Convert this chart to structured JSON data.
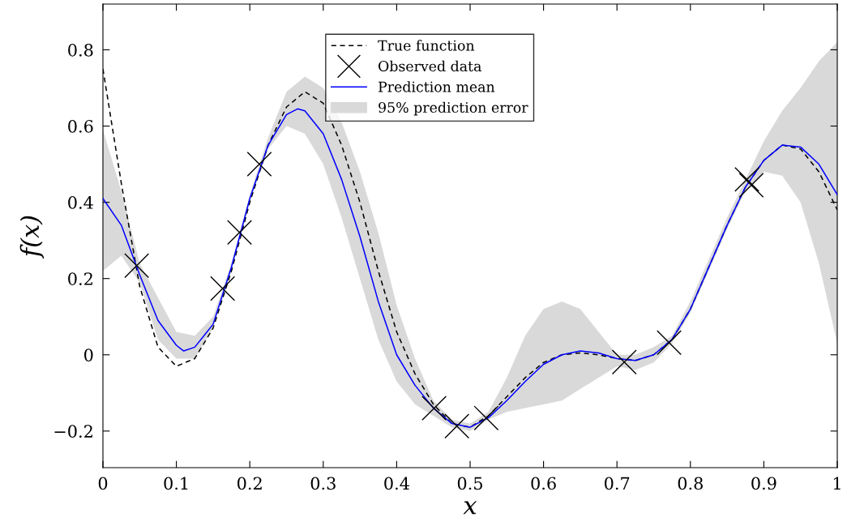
{
  "chart_data": {
    "type": "line",
    "xlabel": "x",
    "ylabel": "f(x)",
    "xlim": [
      0,
      1
    ],
    "ylim": [
      -0.296,
      0.92
    ],
    "xticks": [
      0,
      0.1,
      0.2,
      0.3,
      0.4,
      0.5,
      0.6,
      0.7,
      0.8,
      0.9,
      1
    ],
    "yticks": [
      {
        "value": -0.2,
        "label": "−0.2"
      },
      0,
      0.2,
      0.4,
      0.6,
      0.8
    ],
    "grid": false,
    "legend": "top",
    "series": [
      {
        "name": "95% prediction error",
        "type": "area",
        "color": "#d9d9d9",
        "values": [
          null,
          null,
          null,
          null,
          null,
          null,
          null,
          null,
          null,
          null,
          null,
          null,
          null,
          null,
          null,
          null,
          null,
          null,
          null,
          null,
          null,
          null,
          null,
          null,
          null,
          null,
          null,
          null,
          null,
          null,
          null,
          null,
          null,
          null,
          null,
          null,
          null,
          null,
          null,
          null,
          null
        ],
        "x": [
          0,
          0.025,
          0.05,
          0.075,
          0.1,
          0.125,
          0.15,
          0.175,
          0.2,
          0.225,
          0.25,
          0.275,
          0.3,
          0.325,
          0.35,
          0.375,
          0.4,
          0.425,
          0.45,
          0.475,
          0.5,
          0.525,
          0.55,
          0.575,
          0.6,
          0.625,
          0.65,
          0.675,
          0.7,
          0.725,
          0.75,
          0.775,
          0.8,
          0.825,
          0.85,
          0.875,
          0.9,
          0.925,
          0.95,
          0.975,
          1
        ],
        "lower": [
          0.22,
          0.26,
          0.19,
          0.04,
          -0.01,
          -0.01,
          0.07,
          0.22,
          0.4,
          0.54,
          0.6,
          0.58,
          0.5,
          0.36,
          0.2,
          0.04,
          -0.07,
          -0.13,
          -0.16,
          -0.19,
          -0.2,
          -0.17,
          -0.15,
          -0.14,
          -0.13,
          -0.12,
          -0.09,
          -0.06,
          -0.03,
          -0.04,
          -0.02,
          0.03,
          0.11,
          0.22,
          0.33,
          0.43,
          0.48,
          0.47,
          0.4,
          0.24,
          0.03
        ],
        "upper": [
          0.59,
          0.43,
          0.24,
          0.15,
          0.06,
          0.05,
          0.1,
          0.24,
          0.42,
          0.57,
          0.69,
          0.73,
          0.7,
          0.61,
          0.48,
          0.32,
          0.13,
          -0.01,
          -0.12,
          -0.17,
          -0.18,
          -0.15,
          -0.06,
          0.05,
          0.12,
          0.14,
          0.12,
          0.06,
          0.0,
          0.0,
          0.02,
          0.05,
          0.14,
          0.25,
          0.36,
          0.46,
          0.56,
          0.64,
          0.7,
          0.77,
          0.82
        ]
      },
      {
        "name": "True function",
        "color": "#000000",
        "line_style": "dashed",
        "x": [
          0,
          0.025,
          0.05,
          0.075,
          0.1,
          0.125,
          0.15,
          0.175,
          0.2,
          0.225,
          0.25,
          0.275,
          0.3,
          0.325,
          0.35,
          0.375,
          0.4,
          0.425,
          0.45,
          0.475,
          0.5,
          0.525,
          0.55,
          0.575,
          0.6,
          0.625,
          0.65,
          0.675,
          0.7,
          0.725,
          0.75,
          0.775,
          0.8,
          0.825,
          0.85,
          0.875,
          0.9,
          0.925,
          0.95,
          0.975,
          1
        ],
        "values": [
          0.75,
          0.45,
          0.18,
          0.02,
          -0.03,
          -0.01,
          0.07,
          0.22,
          0.4,
          0.55,
          0.65,
          0.69,
          0.66,
          0.55,
          0.4,
          0.22,
          0.06,
          -0.05,
          -0.13,
          -0.18,
          -0.19,
          -0.16,
          -0.11,
          -0.06,
          -0.02,
          0.0,
          0.005,
          0.0,
          -0.01,
          -0.015,
          0.0,
          0.04,
          0.12,
          0.23,
          0.34,
          0.44,
          0.51,
          0.55,
          0.54,
          0.48,
          0.38
        ]
      },
      {
        "name": "Observed data",
        "type": "scatter",
        "color": "#000000",
        "marker": "cross",
        "x": [
          0.046,
          0.163,
          0.186,
          0.213,
          0.451,
          0.482,
          0.522,
          0.71,
          0.771,
          0.877,
          0.883
        ],
        "values": [
          0.234,
          0.174,
          0.321,
          0.5,
          -0.14,
          -0.187,
          -0.166,
          -0.019,
          0.032,
          0.46,
          0.445
        ]
      },
      {
        "name": "Prediction mean",
        "color": "#0000ff",
        "line_style": "solid",
        "x": [
          0,
          0.025,
          0.05,
          0.075,
          0.1,
          0.11,
          0.125,
          0.15,
          0.175,
          0.2,
          0.225,
          0.25,
          0.265,
          0.275,
          0.3,
          0.325,
          0.35,
          0.375,
          0.4,
          0.425,
          0.45,
          0.475,
          0.5,
          0.525,
          0.55,
          0.575,
          0.6,
          0.625,
          0.65,
          0.675,
          0.7,
          0.725,
          0.75,
          0.775,
          0.8,
          0.825,
          0.85,
          0.875,
          0.9,
          0.925,
          0.95,
          0.975,
          1
        ],
        "values": [
          0.41,
          0.34,
          0.21,
          0.09,
          0.025,
          0.01,
          0.02,
          0.08,
          0.23,
          0.41,
          0.55,
          0.63,
          0.645,
          0.64,
          0.58,
          0.46,
          0.31,
          0.14,
          0.0,
          -0.08,
          -0.14,
          -0.18,
          -0.19,
          -0.165,
          -0.12,
          -0.07,
          -0.025,
          0.0,
          0.01,
          0.005,
          -0.01,
          -0.015,
          0.0,
          0.04,
          0.12,
          0.23,
          0.34,
          0.44,
          0.51,
          0.55,
          0.545,
          0.5,
          0.42
        ]
      }
    ]
  }
}
